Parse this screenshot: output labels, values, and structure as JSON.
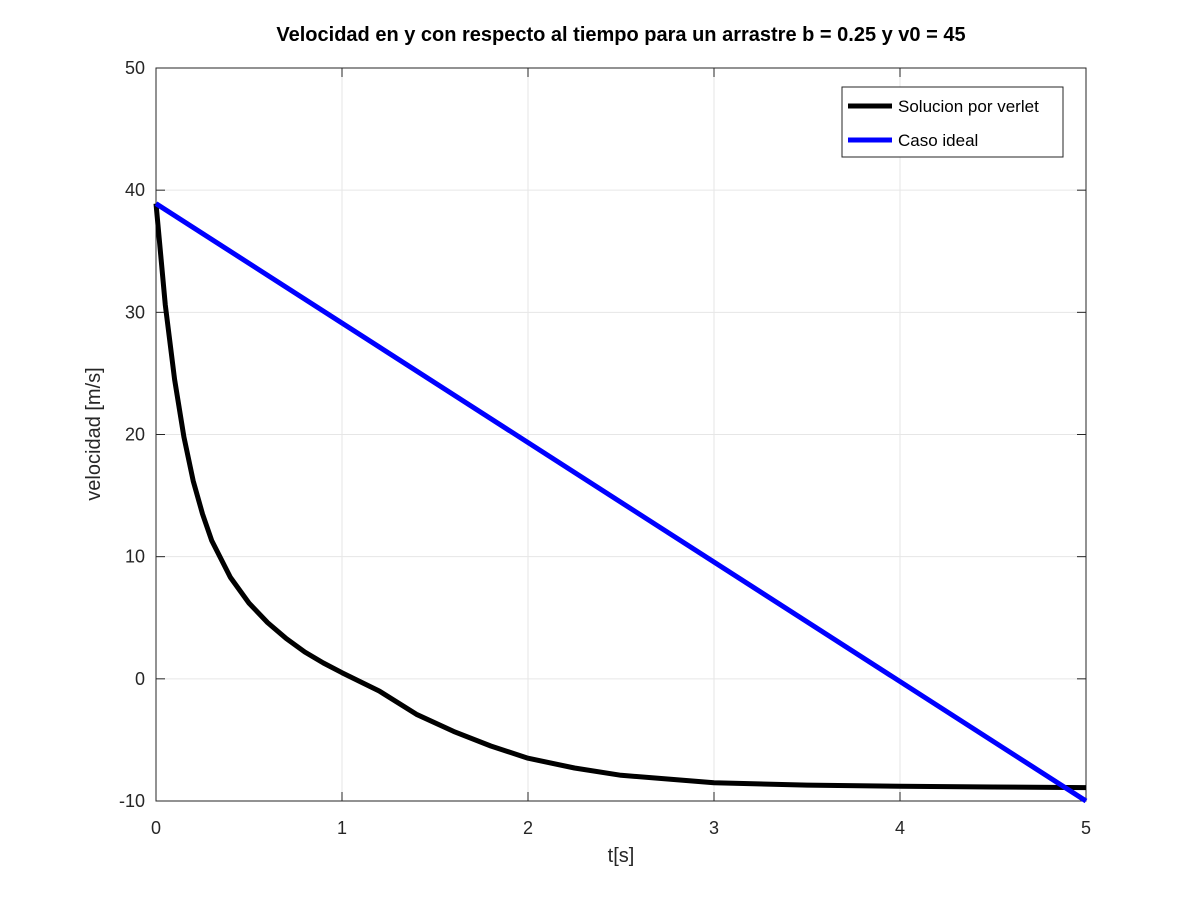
{
  "chart_data": {
    "type": "line",
    "title": "Velocidad en y con respecto al tiempo para un arrastre b = 0.25 y  v0 = 45",
    "xlabel": "t[s]",
    "ylabel": "velocidad [m/s]",
    "xlim": [
      0,
      5
    ],
    "ylim": [
      -10,
      50
    ],
    "xticks": [
      "0",
      "1",
      "2",
      "3",
      "4",
      "5"
    ],
    "yticks": [
      "-10",
      "0",
      "10",
      "20",
      "30",
      "40",
      "50"
    ],
    "grid": true,
    "legend_position": "top-right",
    "series": [
      {
        "name": "Solucion por verlet",
        "color": "#000000",
        "x": [
          0,
          0.05,
          0.1,
          0.15,
          0.2,
          0.25,
          0.3,
          0.4,
          0.5,
          0.6,
          0.7,
          0.8,
          0.9,
          1.0,
          1.2,
          1.4,
          1.6,
          1.8,
          2.0,
          2.25,
          2.5,
          2.75,
          3.0,
          3.5,
          4.0,
          4.5,
          5.0
        ],
        "y": [
          38.9,
          30.6,
          24.5,
          19.8,
          16.2,
          13.5,
          11.3,
          8.3,
          6.2,
          4.6,
          3.3,
          2.2,
          1.3,
          0.5,
          -1.0,
          -2.9,
          -4.3,
          -5.5,
          -6.5,
          -7.3,
          -7.9,
          -8.2,
          -8.5,
          -8.7,
          -8.8,
          -8.85,
          -8.9
        ]
      },
      {
        "name": "Caso ideal",
        "color": "#0000ff",
        "x": [
          0,
          5
        ],
        "y": [
          38.9,
          -10
        ]
      }
    ]
  }
}
